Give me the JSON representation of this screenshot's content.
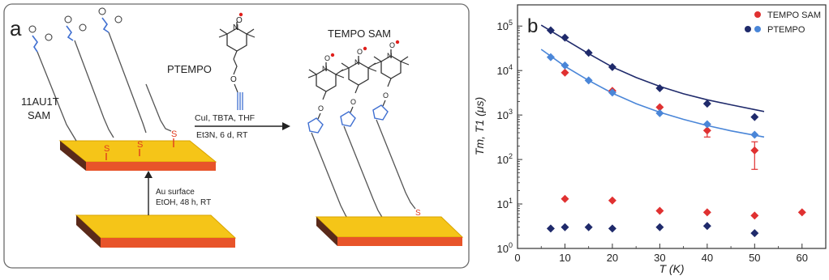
{
  "panel_a": {
    "label": "a",
    "sam_label_line1": "11AU1T",
    "sam_label_line2": "SAM",
    "reagent_name": "PTEMPO",
    "product_title": "TEMPO SAM",
    "conditions_line1": "CuI, TBTA, THF",
    "conditions_line2": "Et3N, 6 d, RT",
    "surface_line1": "Au surface",
    "surface_line2": "EtOH, 48 h, RT",
    "atom_labels": {
      "nitrogen": "N",
      "oxygen": "O",
      "sulfur": "S",
      "plus": "+",
      "minus": "−"
    },
    "colors": {
      "gold": "#f5c518",
      "gold_edge": "#e8542a",
      "substrate_dark": "#5a2a1a",
      "azide_blue": "#3f6fd1",
      "sulfur_red": "#e03a1e",
      "radical_red": "#e0201c"
    }
  },
  "chart_data": {
    "type": "scatter",
    "panel_label": "b",
    "xlabel": "T (K)",
    "ylabel": "Tm, T1 (μs)",
    "xlim": [
      0,
      65
    ],
    "ylim": [
      1,
      300000
    ],
    "y_scale": "log",
    "x_ticks": [
      0,
      10,
      20,
      30,
      40,
      50,
      60
    ],
    "y_tick_labels": [
      {
        "base": "10",
        "exp": "0",
        "value": 1
      },
      {
        "base": "10",
        "exp": "1",
        "value": 10
      },
      {
        "base": "10",
        "exp": "2",
        "value": 100
      },
      {
        "base": "10",
        "exp": "3",
        "value": 1000
      },
      {
        "base": "10",
        "exp": "4",
        "value": 10000
      },
      {
        "base": "10",
        "exp": "5",
        "value": 100000
      }
    ],
    "legend_placement": "top-right",
    "legend": [
      {
        "name": "TEMPO SAM",
        "color": "#e03131"
      },
      {
        "name": "PTEMPO",
        "color": "#1f2a6b",
        "color2": "#4a86d8"
      }
    ],
    "series": [
      {
        "name": "TEMPO SAM",
        "quantity": "T1",
        "color": "#e03131",
        "x": [
          10,
          20,
          30,
          40,
          50
        ],
        "y": [
          9000,
          3500,
          1500,
          450,
          160
        ],
        "err_low": [
          null,
          null,
          null,
          320,
          60
        ],
        "err_high": [
          null,
          null,
          null,
          600,
          250
        ]
      },
      {
        "name": "TEMPO SAM",
        "quantity": "Tm",
        "color": "#e03131",
        "x": [
          10,
          20,
          30,
          40,
          50,
          60
        ],
        "y": [
          13,
          12,
          7,
          6.5,
          5.5,
          6.5
        ]
      },
      {
        "name": "PTEMPO",
        "quantity": "T1",
        "color": "#1f2a6b",
        "x": [
          7,
          10,
          15,
          20,
          30,
          40,
          50
        ],
        "y": [
          80000,
          55000,
          25000,
          12000,
          4000,
          1800,
          900
        ]
      },
      {
        "name": "PTEMPO",
        "quantity": "T1",
        "color": "#4a86d8",
        "x": [
          7,
          10,
          15,
          20,
          30,
          40,
          50
        ],
        "y": [
          20000,
          13000,
          6000,
          3200,
          1100,
          620,
          360
        ]
      },
      {
        "name": "PTEMPO",
        "quantity": "Tm",
        "color": "#1f2a6b",
        "x": [
          7,
          10,
          15,
          20,
          30,
          40,
          50
        ],
        "y": [
          2.8,
          3.0,
          3.0,
          2.8,
          3.0,
          3.2,
          2.2
        ]
      }
    ],
    "fits": [
      {
        "color": "#1f2a6b",
        "x": [
          5,
          10,
          15,
          20,
          25,
          30,
          35,
          40,
          45,
          52
        ],
        "y": [
          105000,
          50000,
          24000,
          12000,
          7000,
          4400,
          3000,
          2200,
          1700,
          1200
        ]
      },
      {
        "color": "#4a86d8",
        "x": [
          5,
          10,
          15,
          20,
          25,
          30,
          35,
          40,
          45,
          52
        ],
        "y": [
          30000,
          12500,
          6000,
          3100,
          1800,
          1150,
          800,
          580,
          440,
          320
        ]
      }
    ]
  }
}
